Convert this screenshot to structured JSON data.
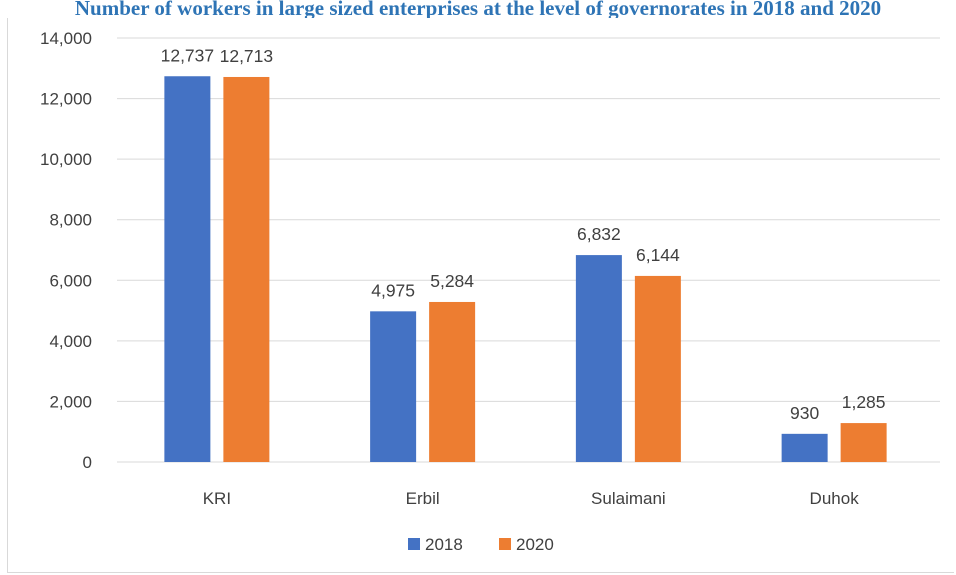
{
  "chart_data": {
    "type": "bar",
    "title": "Number of workers in large sized enterprises at the level of governorates in 2018 and 2020",
    "categories": [
      "KRI",
      "Erbil",
      "Sulaimani",
      "Duhok"
    ],
    "series": [
      {
        "name": "2018",
        "values": [
          12737,
          4975,
          6832,
          930
        ],
        "labels": [
          "12,737",
          "4,975",
          "6,832",
          "930"
        ],
        "color": "#4472c4"
      },
      {
        "name": "2020",
        "values": [
          12713,
          5284,
          6144,
          1285
        ],
        "labels": [
          "12,713",
          "5,284",
          "6,144",
          "1,285"
        ],
        "color": "#ed7d31"
      }
    ],
    "ylim": [
      0,
      14000
    ],
    "yticks": [
      0,
      2000,
      4000,
      6000,
      8000,
      10000,
      12000,
      14000
    ],
    "ytick_labels": [
      "0",
      "2,000",
      "4,000",
      "6,000",
      "8,000",
      "10,000",
      "12,000",
      "14,000"
    ],
    "grid": true,
    "legend_position": "bottom",
    "xlabel": "",
    "ylabel": ""
  }
}
